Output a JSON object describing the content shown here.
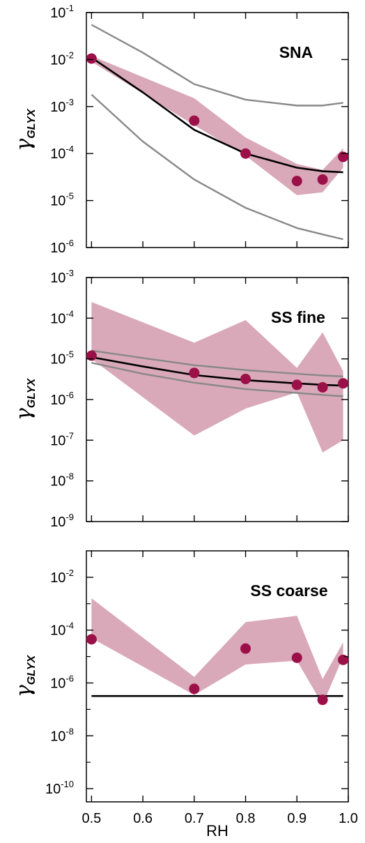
{
  "chart_data": [
    {
      "type": "line",
      "title": "SNA",
      "ylabel": "γGLYX",
      "ylabel_main": "γ",
      "ylabel_sub": "GLYX",
      "xlabel": "",
      "ylog": true,
      "ylim_exp": [
        -6,
        -1
      ],
      "xlim": [
        0.49,
        1.0
      ],
      "yticks": [
        {
          "base": "10",
          "exp": "-1",
          "value": -1
        },
        {
          "base": "10",
          "exp": "-2",
          "value": -2
        },
        {
          "base": "10",
          "exp": "-3",
          "value": -3
        },
        {
          "base": "10",
          "exp": "-4",
          "value": -4
        },
        {
          "base": "10",
          "exp": "-5",
          "value": -5
        },
        {
          "base": "10",
          "exp": "-6",
          "value": -6
        }
      ],
      "band": {
        "color": "#d9a9b9",
        "x": [
          0.5,
          0.7,
          0.8,
          0.9,
          0.95,
          0.99
        ],
        "upper": [
          0.012,
          0.0015,
          0.00022,
          6e-05,
          4.5e-05,
          0.00013
        ],
        "lower": [
          0.009,
          0.0004,
          9e-05,
          1.3e-05,
          1.5e-05,
          5e-05
        ]
      },
      "series": [
        {
          "role": "model",
          "color": "#000000",
          "x": [
            0.5,
            0.6,
            0.7,
            0.8,
            0.9,
            0.95,
            0.99
          ],
          "y": [
            0.011,
            0.002,
            0.00032,
            0.0001,
            5e-05,
            4.2e-05,
            4e-05
          ]
        },
        {
          "role": "upper-bound",
          "color": "#888888",
          "x": [
            0.5,
            0.6,
            0.7,
            0.8,
            0.9,
            0.95,
            0.99
          ],
          "y": [
            0.055,
            0.014,
            0.003,
            0.0014,
            0.00105,
            0.00105,
            0.0012
          ]
        },
        {
          "role": "lower-bound",
          "color": "#888888",
          "x": [
            0.5,
            0.6,
            0.7,
            0.8,
            0.9,
            0.95,
            0.99
          ],
          "y": [
            0.0018,
            0.00018,
            2.8e-05,
            7e-06,
            2.6e-06,
            1.9e-06,
            1.5e-06
          ]
        },
        {
          "role": "observed",
          "color": "#9b1048",
          "x": [
            0.5,
            0.7,
            0.8,
            0.9,
            0.95,
            0.99
          ],
          "y": [
            0.0105,
            0.0005,
            0.0001,
            2.6e-05,
            2.8e-05,
            8.5e-05
          ]
        }
      ]
    },
    {
      "type": "line",
      "title": "SS fine",
      "ylabel": "γGLYX",
      "ylabel_main": "γ",
      "ylabel_sub": "GLYX",
      "xlabel": "",
      "ylog": true,
      "ylim_exp": [
        -9,
        -3
      ],
      "xlim": [
        0.49,
        1.0
      ],
      "yticks": [
        {
          "base": "10",
          "exp": "-3",
          "value": -3
        },
        {
          "base": "10",
          "exp": "-4",
          "value": -4
        },
        {
          "base": "10",
          "exp": "-5",
          "value": -5
        },
        {
          "base": "10",
          "exp": "-6",
          "value": -6
        },
        {
          "base": "10",
          "exp": "-7",
          "value": -7
        },
        {
          "base": "10",
          "exp": "-8",
          "value": -8
        },
        {
          "base": "10",
          "exp": "-9",
          "value": -9
        }
      ],
      "band": {
        "color": "#d9a9b9",
        "x": [
          0.5,
          0.7,
          0.8,
          0.9,
          0.95,
          0.99
        ],
        "upper": [
          0.00025,
          2.5e-05,
          9e-05,
          6e-06,
          4.5e-05,
          5e-06
        ],
        "lower": [
          1e-05,
          1.3e-07,
          6e-07,
          1.5e-06,
          5e-08,
          1e-07
        ]
      },
      "series": [
        {
          "role": "model",
          "color": "#000000",
          "x": [
            0.5,
            0.6,
            0.7,
            0.8,
            0.9,
            0.95,
            0.99
          ],
          "y": [
            1.1e-05,
            6.5e-06,
            4e-06,
            3e-06,
            2.5e-06,
            2.3e-06,
            2.2e-06
          ]
        },
        {
          "role": "upper-bound",
          "color": "#888888",
          "x": [
            0.5,
            0.6,
            0.7,
            0.8,
            0.9,
            0.95,
            0.99
          ],
          "y": [
            1.6e-05,
            1.05e-05,
            7e-06,
            5.3e-06,
            4.3e-06,
            3.9e-06,
            3.7e-06
          ]
        },
        {
          "role": "lower-bound",
          "color": "#888888",
          "x": [
            0.5,
            0.6,
            0.7,
            0.8,
            0.9,
            0.95,
            0.99
          ],
          "y": [
            8e-06,
            4.3e-06,
            2.6e-06,
            1.8e-06,
            1.45e-06,
            1.3e-06,
            1.2e-06
          ]
        },
        {
          "role": "observed",
          "color": "#9b1048",
          "x": [
            0.5,
            0.7,
            0.8,
            0.9,
            0.95,
            0.99
          ],
          "y": [
            1.2e-05,
            4.5e-06,
            3.2e-06,
            2.3e-06,
            2e-06,
            2.5e-06
          ]
        }
      ]
    },
    {
      "type": "line",
      "title": "SS coarse",
      "ylabel": "γGLYX",
      "ylabel_main": "γ",
      "ylabel_sub": "GLYX",
      "xlabel": "RH",
      "ylog": true,
      "ylim_exp": [
        -10.5,
        -1
      ],
      "xlim": [
        0.49,
        1.0
      ],
      "yticks": [
        {
          "base": "10",
          "exp": "-2",
          "value": -2
        },
        {
          "base": "10",
          "exp": "-4",
          "value": -4
        },
        {
          "base": "10",
          "exp": "-6",
          "value": -6
        },
        {
          "base": "10",
          "exp": "-8",
          "value": -8
        },
        {
          "base": "10",
          "exp": "-10",
          "value": -10
        }
      ],
      "xticks": [
        {
          "label": "0.5",
          "value": 0.5
        },
        {
          "label": "0.6",
          "value": 0.6
        },
        {
          "label": "0.7",
          "value": 0.7
        },
        {
          "label": "0.8",
          "value": 0.8
        },
        {
          "label": "0.9",
          "value": 0.9
        },
        {
          "label": "1.0",
          "value": 1.0
        }
      ],
      "band": {
        "color": "#d9a9b9",
        "x": [
          0.5,
          0.7,
          0.8,
          0.9,
          0.95,
          0.99
        ],
        "upper": [
          0.0016,
          1.7e-06,
          0.0002,
          0.00035,
          1.4e-06,
          3.5e-05
        ],
        "lower": [
          5e-05,
          3.5e-07,
          5e-06,
          7e-06,
          1.5e-07,
          1e-05
        ]
      },
      "series": [
        {
          "role": "model",
          "color": "#000000",
          "x": [
            0.5,
            0.99
          ],
          "y": [
            3.2e-07,
            3.2e-07
          ]
        },
        {
          "role": "observed",
          "color": "#9b1048",
          "x": [
            0.5,
            0.7,
            0.8,
            0.9,
            0.95,
            0.99
          ],
          "y": [
            4.5e-05,
            6e-07,
            2e-05,
            9e-06,
            2.3e-07,
            7.5e-06
          ]
        }
      ]
    }
  ]
}
